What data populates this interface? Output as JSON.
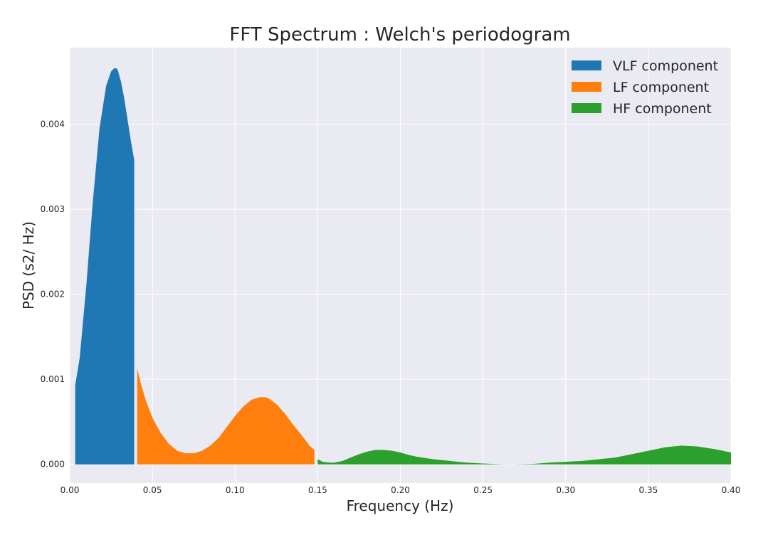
{
  "chart_data": {
    "type": "area",
    "title": "FFT Spectrum : Welch's periodogram",
    "xlabel": "Frequency (Hz)",
    "ylabel": "PSD (s2/ Hz)",
    "xlim": [
      0.0,
      0.4
    ],
    "ylim": [
      -0.00022,
      0.0049
    ],
    "x_ticks": [
      0.0,
      0.05,
      0.1,
      0.15,
      0.2,
      0.25,
      0.3,
      0.35,
      0.4
    ],
    "x_tick_labels": [
      "0.00",
      "0.05",
      "0.10",
      "0.15",
      "0.20",
      "0.25",
      "0.30",
      "0.35",
      "0.40"
    ],
    "y_ticks": [
      0.0,
      0.001,
      0.002,
      0.003,
      0.004
    ],
    "y_tick_labels": [
      "0.000",
      "0.001",
      "0.002",
      "0.003",
      "0.004"
    ],
    "grid": true,
    "legend_position": "top-right",
    "series": [
      {
        "name": "VLF component",
        "color": "#1f77b4",
        "x": [
          0.0033,
          0.006,
          0.01,
          0.014,
          0.018,
          0.022,
          0.025,
          0.027,
          0.028,
          0.029,
          0.031,
          0.033,
          0.035,
          0.037,
          0.039,
          0.039
        ],
        "y": [
          0.00093,
          0.00125,
          0.0021,
          0.0031,
          0.00395,
          0.00445,
          0.00462,
          0.00466,
          0.00466,
          0.00464,
          0.0045,
          0.0043,
          0.00405,
          0.0038,
          0.00358,
          0.0
        ]
      },
      {
        "name": "LF component",
        "color": "#ff7f0e",
        "x": [
          0.0408,
          0.043,
          0.046,
          0.05,
          0.055,
          0.06,
          0.065,
          0.07,
          0.075,
          0.08,
          0.085,
          0.09,
          0.095,
          0.1,
          0.105,
          0.11,
          0.115,
          0.118,
          0.12,
          0.125,
          0.13,
          0.135,
          0.14,
          0.145,
          0.148
        ],
        "y": [
          0.00113,
          0.00095,
          0.00075,
          0.00055,
          0.00037,
          0.00024,
          0.00016,
          0.00013,
          0.00013,
          0.00016,
          0.00022,
          0.00031,
          0.00044,
          0.00057,
          0.00068,
          0.00076,
          0.00079,
          0.00079,
          0.00078,
          0.00071,
          0.0006,
          0.00047,
          0.00035,
          0.00022,
          0.00017
        ]
      },
      {
        "name": "HF component",
        "color": "#2ca02c",
        "x": [
          0.15,
          0.153,
          0.157,
          0.16,
          0.165,
          0.17,
          0.175,
          0.18,
          0.185,
          0.19,
          0.195,
          0.2,
          0.205,
          0.21,
          0.22,
          0.23,
          0.24,
          0.25,
          0.26,
          0.268,
          0.28,
          0.29,
          0.3,
          0.31,
          0.32,
          0.33,
          0.34,
          0.35,
          0.36,
          0.37,
          0.38,
          0.39,
          0.4
        ],
        "y": [
          6e-05,
          3e-05,
          2e-05,
          2e-05,
          4e-05,
          8e-05,
          0.00012,
          0.00015,
          0.00017,
          0.00017,
          0.00016,
          0.00014,
          0.00011,
          9e-05,
          6e-05,
          4e-05,
          2e-05,
          1e-05,
          2e-06,
          0.0,
          5e-06,
          2e-05,
          3e-05,
          4e-05,
          6e-05,
          8e-05,
          0.00012,
          0.00016,
          0.0002,
          0.00022,
          0.00021,
          0.00018,
          0.00014
        ]
      }
    ]
  }
}
